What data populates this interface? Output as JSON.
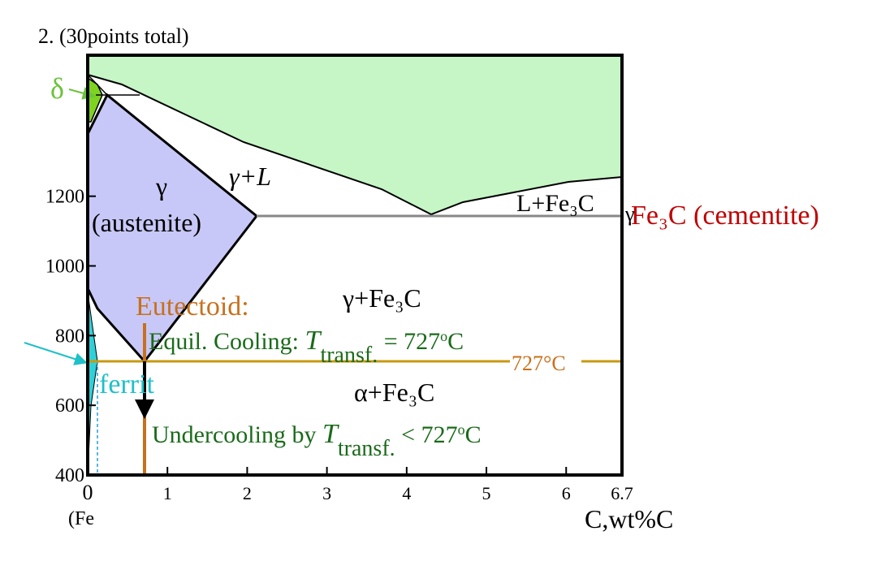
{
  "title": "2. (30points total)",
  "axes": {
    "xlim": [
      0,
      6.7
    ],
    "ylim": [
      400,
      1600
    ],
    "x_ticks": [
      0,
      1,
      2,
      3,
      4,
      5,
      6,
      6.7
    ],
    "y_ticks": [
      400,
      600,
      800,
      1000,
      1200
    ],
    "x_origin_label": "(Fe",
    "x_label": "C,wt%C"
  },
  "regions": {
    "delta": "δ",
    "gamma": "γ",
    "austenite": "(austenite)",
    "gamma_liquid": "γ+L",
    "liquid_cementite": "L+Fe₃C",
    "cementite": "Fe₃C (cementite)",
    "gamma_edge": "γ",
    "gamma_cementite": "γ+Fe₃C",
    "alpha_cementite": "α+Fe₃C",
    "ferrite": "ferrit"
  },
  "annotations": {
    "eutectoid": "Eutectoid:",
    "equil": [
      "Equil. Cooling: ",
      "T",
      "transf.",
      " = 727",
      "o",
      "C"
    ],
    "line_label": "727°C",
    "under": [
      "Undercooling by ",
      "T",
      "transf.",
      " < 727",
      "o",
      "C"
    ]
  }
}
